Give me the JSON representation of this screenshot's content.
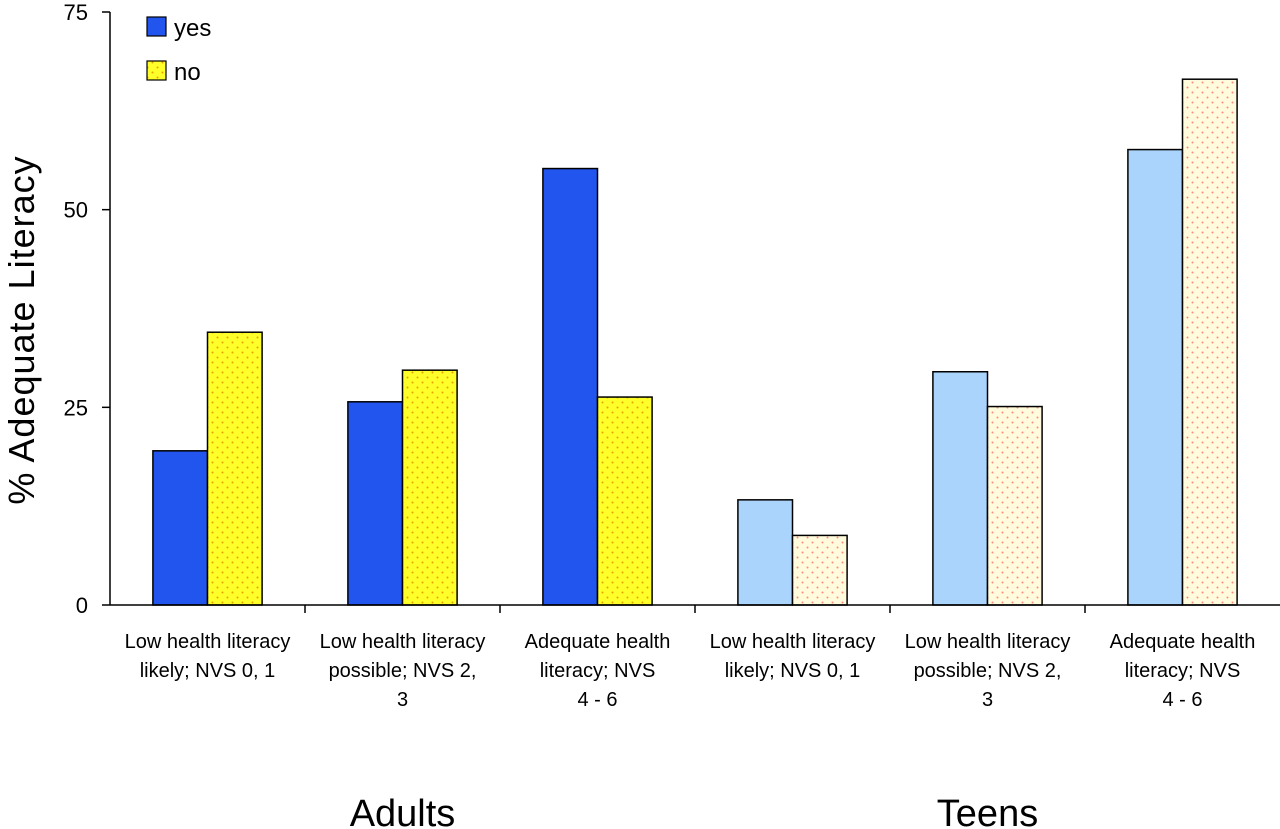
{
  "chart_data": {
    "type": "bar",
    "ylabel": "%  Adequate  Literacy",
    "ylim": [
      0,
      75
    ],
    "yticks": [
      "0",
      "25",
      "50",
      "75"
    ],
    "ytick_values": [
      0,
      25,
      50,
      75
    ],
    "grid": false,
    "legend_position": "top-left",
    "categories": [
      [
        "Low health literacy",
        "likely;  NVS 0, 1"
      ],
      [
        "Low health literacy",
        "possible;  NVS 2,",
        "3"
      ],
      [
        "Adequate     health",
        "literacy;          NVS",
        "4 - 6"
      ],
      [
        "Low health literacy",
        "likely;  NVS 0, 1"
      ],
      [
        "Low health literacy",
        "possible;  NVS 2,",
        "3"
      ],
      [
        "Adequate     health",
        "literacy;          NVS",
        "4 - 6"
      ]
    ],
    "groups": [
      {
        "label": "Adults",
        "category_indices": [
          0,
          1,
          2
        ]
      },
      {
        "label": "Teens",
        "category_indices": [
          3,
          4,
          5
        ]
      }
    ],
    "series": [
      {
        "name": "yes",
        "values": [
          19.5,
          25.7,
          55.2,
          13.3,
          29.5,
          57.6
        ]
      },
      {
        "name": "no",
        "values": [
          34.5,
          29.7,
          26.3,
          8.8,
          25.1,
          66.5
        ]
      }
    ],
    "colors": {
      "yes_adults": "#2255ee",
      "yes_teens": "#aad4fb",
      "no_adults": "#ffff2a",
      "no_teens": "#fffbdc",
      "dots_adults": "#e8a000",
      "dots_teens": "#ff8a80",
      "outline": "#000000"
    }
  }
}
